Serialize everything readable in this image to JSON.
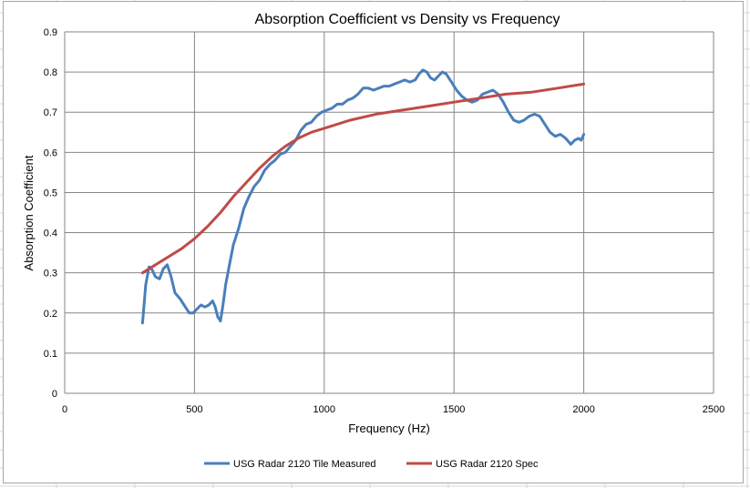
{
  "chart_data": {
    "type": "line",
    "title": "Absorption Coefficient vs Density vs Frequency",
    "xlabel": "Frequency (Hz)",
    "ylabel": "Absorption Coefficient",
    "xlim": [
      0,
      2500
    ],
    "ylim": [
      0,
      0.9
    ],
    "x_ticks": [
      0,
      500,
      1000,
      1500,
      2000,
      2500
    ],
    "y_ticks": [
      0,
      0.1,
      0.2,
      0.3,
      0.4,
      0.5,
      0.6,
      0.7,
      0.8,
      0.9
    ],
    "x_tick_labels": [
      "0",
      "500",
      "1000",
      "1500",
      "2000",
      "2500"
    ],
    "y_tick_labels": [
      "0",
      "0.1",
      "0.2",
      "0.3",
      "0.4",
      "0.5",
      "0.6",
      "0.7",
      "0.8",
      "0.9"
    ],
    "grid": true,
    "legend_position": "bottom",
    "series": [
      {
        "name": "USG Radar 2120 Tile Measured",
        "color": "#4a7ebb",
        "points": [
          [
            300,
            0.175
          ],
          [
            312,
            0.27
          ],
          [
            325,
            0.315
          ],
          [
            335,
            0.31
          ],
          [
            350,
            0.29
          ],
          [
            365,
            0.285
          ],
          [
            380,
            0.31
          ],
          [
            395,
            0.32
          ],
          [
            410,
            0.29
          ],
          [
            425,
            0.25
          ],
          [
            445,
            0.235
          ],
          [
            465,
            0.215
          ],
          [
            480,
            0.2
          ],
          [
            495,
            0.2
          ],
          [
            510,
            0.21
          ],
          [
            525,
            0.22
          ],
          [
            540,
            0.215
          ],
          [
            555,
            0.22
          ],
          [
            570,
            0.23
          ],
          [
            580,
            0.215
          ],
          [
            590,
            0.19
          ],
          [
            600,
            0.18
          ],
          [
            610,
            0.22
          ],
          [
            620,
            0.27
          ],
          [
            635,
            0.32
          ],
          [
            650,
            0.37
          ],
          [
            670,
            0.41
          ],
          [
            690,
            0.46
          ],
          [
            710,
            0.49
          ],
          [
            730,
            0.515
          ],
          [
            750,
            0.53
          ],
          [
            770,
            0.555
          ],
          [
            790,
            0.57
          ],
          [
            810,
            0.58
          ],
          [
            830,
            0.595
          ],
          [
            850,
            0.6
          ],
          [
            870,
            0.615
          ],
          [
            890,
            0.63
          ],
          [
            910,
            0.655
          ],
          [
            930,
            0.67
          ],
          [
            950,
            0.675
          ],
          [
            970,
            0.69
          ],
          [
            990,
            0.7
          ],
          [
            1010,
            0.705
          ],
          [
            1030,
            0.71
          ],
          [
            1050,
            0.72
          ],
          [
            1070,
            0.72
          ],
          [
            1090,
            0.73
          ],
          [
            1110,
            0.735
          ],
          [
            1130,
            0.745
          ],
          [
            1150,
            0.76
          ],
          [
            1170,
            0.76
          ],
          [
            1190,
            0.755
          ],
          [
            1210,
            0.76
          ],
          [
            1230,
            0.765
          ],
          [
            1250,
            0.765
          ],
          [
            1270,
            0.77
          ],
          [
            1290,
            0.775
          ],
          [
            1310,
            0.78
          ],
          [
            1330,
            0.775
          ],
          [
            1350,
            0.78
          ],
          [
            1365,
            0.795
          ],
          [
            1380,
            0.805
          ],
          [
            1395,
            0.8
          ],
          [
            1410,
            0.785
          ],
          [
            1425,
            0.78
          ],
          [
            1440,
            0.79
          ],
          [
            1455,
            0.8
          ],
          [
            1470,
            0.795
          ],
          [
            1490,
            0.775
          ],
          [
            1510,
            0.755
          ],
          [
            1530,
            0.74
          ],
          [
            1550,
            0.73
          ],
          [
            1570,
            0.725
          ],
          [
            1590,
            0.73
          ],
          [
            1610,
            0.745
          ],
          [
            1630,
            0.75
          ],
          [
            1650,
            0.755
          ],
          [
            1670,
            0.745
          ],
          [
            1690,
            0.725
          ],
          [
            1710,
            0.7
          ],
          [
            1730,
            0.68
          ],
          [
            1750,
            0.675
          ],
          [
            1770,
            0.68
          ],
          [
            1790,
            0.69
          ],
          [
            1810,
            0.695
          ],
          [
            1830,
            0.69
          ],
          [
            1850,
            0.67
          ],
          [
            1870,
            0.65
          ],
          [
            1890,
            0.64
          ],
          [
            1910,
            0.645
          ],
          [
            1930,
            0.635
          ],
          [
            1950,
            0.62
          ],
          [
            1965,
            0.63
          ],
          [
            1980,
            0.635
          ],
          [
            1990,
            0.63
          ],
          [
            2000,
            0.645
          ]
        ]
      },
      {
        "name": "USG Radar 2120 Spec",
        "color": "#be4b48",
        "points": [
          [
            300,
            0.3
          ],
          [
            350,
            0.32
          ],
          [
            400,
            0.34
          ],
          [
            450,
            0.36
          ],
          [
            500,
            0.385
          ],
          [
            550,
            0.415
          ],
          [
            600,
            0.45
          ],
          [
            650,
            0.49
          ],
          [
            700,
            0.525
          ],
          [
            750,
            0.56
          ],
          [
            800,
            0.59
          ],
          [
            850,
            0.615
          ],
          [
            900,
            0.635
          ],
          [
            950,
            0.65
          ],
          [
            1000,
            0.66
          ],
          [
            1100,
            0.68
          ],
          [
            1200,
            0.695
          ],
          [
            1300,
            0.705
          ],
          [
            1400,
            0.715
          ],
          [
            1500,
            0.725
          ],
          [
            1600,
            0.735
          ],
          [
            1700,
            0.745
          ],
          [
            1800,
            0.75
          ],
          [
            1900,
            0.76
          ],
          [
            2000,
            0.77
          ]
        ]
      }
    ]
  }
}
